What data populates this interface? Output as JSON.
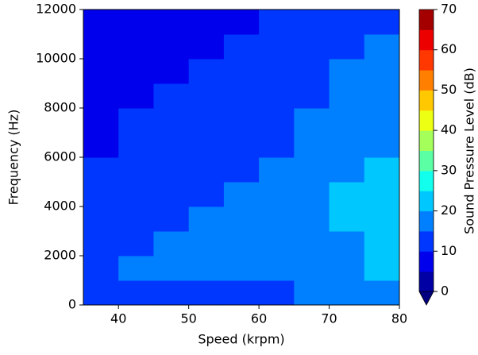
{
  "chart_data": {
    "type": "heatmap",
    "x_label": "Speed (krpm)",
    "y_label": "Frequency (Hz)",
    "colorbar_label": "Sound Pressure Level (dB)",
    "xlim": [
      35,
      80
    ],
    "xticks": [
      40,
      50,
      60,
      70,
      80
    ],
    "ylim": [
      0,
      12000
    ],
    "yticks": [
      0,
      2000,
      4000,
      6000,
      8000,
      10000,
      12000
    ],
    "x_edges": [
      35,
      40,
      45,
      50,
      55,
      60,
      65,
      70,
      75,
      80
    ],
    "y_edges": [
      0,
      1000,
      2000,
      3000,
      4000,
      5000,
      6000,
      7000,
      8000,
      9000,
      10000,
      11000,
      12000
    ],
    "z": [
      [
        12,
        12,
        13,
        13,
        14,
        14,
        15,
        16,
        16
      ],
      [
        14,
        15,
        15,
        16,
        17,
        17,
        18,
        19,
        20
      ],
      [
        13,
        14,
        15,
        16,
        16,
        17,
        18,
        19,
        20
      ],
      [
        12,
        13,
        14,
        15,
        16,
        17,
        18,
        20,
        21
      ],
      [
        11,
        12,
        13,
        14,
        15,
        16,
        18,
        21,
        22
      ],
      [
        10,
        11,
        12,
        13,
        14,
        15,
        17,
        19,
        20
      ],
      [
        9,
        10,
        11,
        12,
        13,
        14,
        16,
        17,
        18
      ],
      [
        9,
        10,
        11,
        12,
        13,
        14,
        15,
        16,
        17
      ],
      [
        8,
        9,
        10,
        11,
        12,
        13,
        14,
        16,
        17
      ],
      [
        6,
        8,
        9,
        10,
        11,
        12,
        13,
        15,
        16
      ],
      [
        6,
        7,
        8,
        9,
        10,
        11,
        12,
        14,
        15
      ],
      [
        5,
        6,
        7,
        8,
        9,
        10,
        11,
        12,
        13
      ]
    ],
    "colormap": "jet",
    "extend": "min",
    "clevels": [
      0,
      5,
      10,
      15,
      20,
      25,
      30,
      35,
      40,
      45,
      50,
      55,
      60,
      65,
      70
    ],
    "cticks": [
      0,
      10,
      20,
      30,
      40,
      50,
      60,
      70
    ]
  }
}
